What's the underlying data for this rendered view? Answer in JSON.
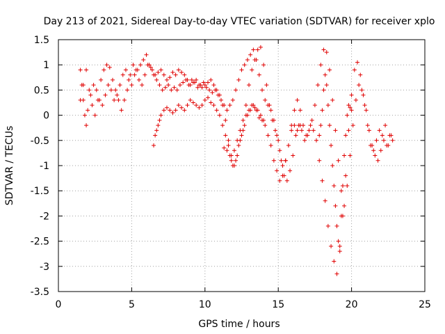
{
  "chart_data": {
    "type": "scatter",
    "title": "Day 213 of 2021, Sidereal Day-to-day VTEC variation (SDTVAR) for receiver xplo",
    "xlabel": "GPS time / hours",
    "ylabel": "SDTVAR / TECUs",
    "xlim": [
      0,
      25
    ],
    "ylim": [
      -3.5,
      1.5
    ],
    "xticks": [
      0,
      5,
      10,
      15,
      20,
      25
    ],
    "xtick_labels": [
      "0",
      "5",
      "10",
      "15",
      "20",
      "25"
    ],
    "yticks": [
      1.5,
      1,
      0.5,
      0,
      -0.5,
      -1,
      -1.5,
      -2,
      -2.5,
      -3,
      -3.5
    ],
    "ytick_labels": [
      "1.5",
      "1",
      "0.5",
      "0",
      "-0.5",
      "-1",
      "-1.5",
      "-2",
      "-2.5",
      "-3",
      "-3.5"
    ],
    "grid": true,
    "marker": "+",
    "color": "#e00000",
    "series": [
      {
        "name": "SDTVAR",
        "x": [
          1.5,
          1.6,
          1.7,
          1.8,
          1.9,
          2.0,
          2.2,
          2.4,
          2.6,
          2.8,
          3.0,
          3.2,
          3.4,
          3.6,
          3.8,
          4.0,
          4.2,
          4.4,
          4.6,
          4.8,
          5.0,
          5.2,
          5.4,
          5.6,
          5.8,
          6.0,
          6.2,
          6.4,
          6.6,
          6.8,
          7.0,
          7.2,
          7.4,
          7.6,
          7.8,
          8.0,
          8.2,
          8.4,
          8.6,
          8.8,
          9.0,
          9.2,
          9.4,
          9.6,
          9.8,
          10.0,
          10.2,
          10.4,
          10.6,
          10.8,
          11.0,
          11.2,
          11.4,
          11.6,
          11.8,
          12.0,
          12.2,
          12.4,
          12.6,
          12.8,
          13.0,
          13.2,
          13.4,
          13.6,
          13.8,
          14.0,
          14.2,
          14.4,
          14.6,
          14.8,
          15.0,
          15.2,
          15.4,
          15.6,
          15.8,
          16.0,
          16.2,
          16.4,
          16.6,
          16.8,
          17.0,
          17.2,
          17.4,
          17.6,
          17.8,
          18.0,
          18.2,
          18.4,
          18.6,
          18.8,
          19.0,
          19.2,
          19.4,
          19.6,
          19.8,
          20.0,
          20.2,
          20.4,
          20.6,
          20.8,
          21.0,
          21.2,
          21.4,
          21.6,
          21.8,
          22.0,
          22.2,
          22.4,
          22.6,
          22.8,
          1.5,
          1.7,
          1.9,
          2.1,
          2.3,
          2.5,
          2.7,
          2.9,
          3.1,
          3.3,
          3.5,
          3.7,
          3.9,
          4.1,
          4.3,
          4.5,
          4.7,
          4.9,
          5.1,
          5.3,
          5.5,
          5.7,
          5.9,
          6.1,
          6.3,
          6.5,
          6.7,
          6.9,
          7.1,
          7.3,
          7.5,
          7.7,
          7.9,
          8.1,
          8.3,
          8.5,
          8.7,
          8.9,
          9.1,
          9.3,
          9.5,
          9.7,
          9.9,
          10.1,
          10.3,
          10.5,
          10.7,
          10.9,
          11.1,
          11.3,
          11.5,
          11.7,
          11.9,
          12.1,
          12.3,
          12.5,
          12.7,
          12.9,
          13.1,
          13.3,
          13.5,
          13.7,
          13.9,
          14.1,
          14.3,
          14.5,
          14.7,
          14.9,
          15.1,
          15.3,
          15.5,
          15.7,
          15.9,
          16.1,
          16.3,
          16.5,
          16.7,
          16.9,
          17.1,
          17.3,
          17.5,
          17.7,
          17.9,
          18.1,
          18.3,
          18.5,
          18.7,
          18.9,
          19.1,
          19.3,
          19.5,
          19.7,
          19.9,
          20.1,
          20.3,
          20.5,
          20.7,
          20.9,
          21.1,
          21.3,
          21.5,
          21.7,
          21.9,
          22.1,
          22.3,
          22.5,
          22.7,
          6.5,
          6.6,
          6.7,
          6.8,
          6.9,
          7.0,
          7.2,
          7.4,
          7.6,
          7.8,
          8.0,
          8.2,
          8.4,
          8.6,
          8.8,
          9.0,
          9.2,
          9.4,
          9.6,
          9.8,
          10.0,
          10.2,
          10.4,
          10.6,
          10.8,
          11.0,
          11.2,
          11.4,
          11.6,
          11.8,
          12.0,
          12.2,
          12.4,
          12.6,
          12.8,
          13.0,
          13.2,
          13.4,
          13.6,
          13.8,
          14.0,
          11.3,
          11.5,
          11.7,
          11.9,
          12.1,
          12.3,
          12.5,
          12.7,
          12.9,
          13.1,
          13.3,
          13.5,
          13.7,
          13.9,
          14.1,
          14.3,
          14.5,
          14.7,
          14.9,
          15.1,
          15.3,
          15.5,
          15.7,
          15.9,
          16.1,
          16.3,
          16.5,
          17.8,
          17.9,
          18.0,
          18.1,
          18.2,
          18.3,
          18.4,
          18.5,
          18.6,
          18.7,
          18.8,
          18.9,
          19.0,
          19.1,
          19.2,
          19.3,
          19.4,
          19.5,
          19.6,
          19.7,
          19.8,
          19.9,
          20.0
        ],
        "y": [
          0.9,
          0.6,
          0.3,
          0.0,
          -0.2,
          0.1,
          0.4,
          0.6,
          0.5,
          0.3,
          0.2,
          0.4,
          0.6,
          0.5,
          0.3,
          0.4,
          0.6,
          0.8,
          0.9,
          0.7,
          0.6,
          0.8,
          0.9,
          1.0,
          1.1,
          1.2,
          1.0,
          0.9,
          0.8,
          0.85,
          0.9,
          0.8,
          0.7,
          0.75,
          0.85,
          0.8,
          0.9,
          0.85,
          0.8,
          0.7,
          0.6,
          0.65,
          0.7,
          0.6,
          0.55,
          0.6,
          0.65,
          0.7,
          0.6,
          0.5,
          0.4,
          0.2,
          -0.1,
          -0.5,
          -0.9,
          -1.0,
          -0.8,
          -0.5,
          -0.3,
          0.2,
          0.6,
          0.9,
          1.1,
          1.3,
          1.35,
          1.0,
          0.6,
          0.2,
          -0.1,
          -0.3,
          -0.5,
          -0.9,
          -1.2,
          -1.3,
          -1.1,
          -0.8,
          -0.4,
          -0.2,
          -0.3,
          -0.5,
          -0.4,
          -0.2,
          -0.3,
          -0.5,
          -0.9,
          -1.3,
          -1.7,
          -2.2,
          -2.6,
          -2.9,
          -3.15,
          -2.7,
          -2.0,
          -1.2,
          -0.3,
          0.4,
          0.9,
          1.05,
          0.8,
          0.4,
          0.1,
          -0.3,
          -0.6,
          -0.8,
          -0.9,
          -0.7,
          -0.5,
          -0.6,
          -0.4,
          -0.5,
          0.3,
          0.6,
          0.9,
          0.5,
          0.2,
          0.0,
          0.3,
          0.7,
          0.9,
          1.0,
          0.95,
          0.7,
          0.5,
          0.3,
          0.1,
          0.3,
          0.5,
          0.8,
          1.0,
          0.9,
          0.7,
          0.6,
          0.8,
          1.0,
          0.95,
          0.8,
          0.7,
          0.6,
          0.5,
          0.55,
          0.6,
          0.5,
          0.55,
          0.5,
          0.6,
          0.65,
          0.7,
          0.6,
          0.7,
          0.65,
          0.55,
          0.6,
          0.65,
          0.55,
          0.5,
          0.45,
          0.5,
          0.4,
          0.3,
          0.2,
          0.1,
          0.2,
          0.3,
          0.5,
          0.7,
          0.9,
          1.0,
          1.1,
          1.2,
          1.3,
          1.1,
          0.8,
          0.5,
          0.3,
          0.2,
          0.1,
          -0.1,
          -0.4,
          -0.7,
          -1.0,
          -0.9,
          -0.6,
          -0.2,
          0.1,
          0.3,
          0.1,
          -0.2,
          -0.4,
          -0.3,
          -0.1,
          0.2,
          0.6,
          1.0,
          1.3,
          1.25,
          0.9,
          0.3,
          -0.3,
          -0.9,
          -1.5,
          -1.8,
          -1.4,
          -0.8,
          -0.2,
          0.3,
          0.6,
          0.5,
          0.2,
          -0.2,
          -0.6,
          -0.7,
          -0.5,
          -0.3,
          -0.4,
          -0.2,
          -0.6,
          -0.4,
          -0.6,
          -0.4,
          -0.3,
          -0.2,
          -0.1,
          0.0,
          0.1,
          0.15,
          0.1,
          0.05,
          0.1,
          0.2,
          0.15,
          0.1,
          0.2,
          0.3,
          0.25,
          0.2,
          0.15,
          0.2,
          0.3,
          0.35,
          0.25,
          0.2,
          0.1,
          0.0,
          -0.2,
          -0.4,
          -0.6,
          -0.8,
          -0.7,
          -0.5,
          -0.3,
          -0.1,
          0.0,
          0.1,
          0.2,
          0.15,
          0.1,
          0.0,
          -0.1,
          -0.65,
          -0.7,
          -0.8,
          -1.0,
          -0.9,
          -0.6,
          -0.4,
          -0.2,
          0.0,
          0.1,
          0.2,
          0.1,
          -0.05,
          -0.1,
          -0.2,
          -0.4,
          -0.6,
          -0.9,
          -1.1,
          -1.3,
          -1.2,
          -0.9,
          -0.6,
          -0.3,
          -0.2,
          -0.3,
          -0.2,
          -0.4,
          -0.2,
          0.1,
          0.5,
          0.8,
          0.6,
          0.2,
          -0.2,
          -0.6,
          -1.0,
          -1.4,
          -1.8,
          -2.2,
          -2.5,
          -2.6,
          -2.0,
          -1.4,
          -0.8,
          -0.4,
          0.0,
          0.2,
          0.15,
          0.1
        ]
      }
    ]
  }
}
